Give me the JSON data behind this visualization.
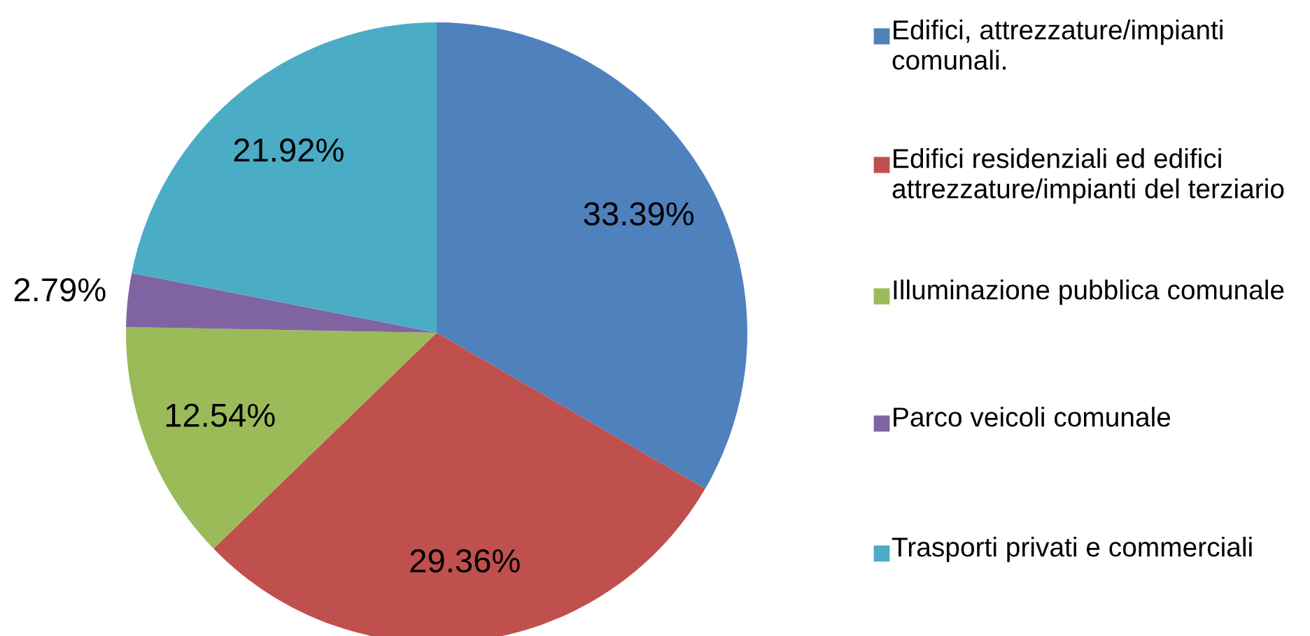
{
  "chart_data": {
    "type": "pie",
    "categories": [
      "Edifici, attrezzature/impianti comunali.",
      "Edifici residenziali ed edifici attrezzature/impianti del terziario",
      "Illuminazione pubblica comunale",
      "Parco veicoli comunale",
      "Trasporti privati e commerciali"
    ],
    "values": [
      33.39,
      29.36,
      12.54,
      2.79,
      21.92
    ],
    "colors": [
      "#4f81bd",
      "#c0504d",
      "#9bbb59",
      "#8064a2",
      "#4bacc6"
    ],
    "value_labels": [
      "33.39%",
      "29.36%",
      "12.54%",
      "2.79%",
      "21.92%"
    ],
    "legend": "right"
  }
}
